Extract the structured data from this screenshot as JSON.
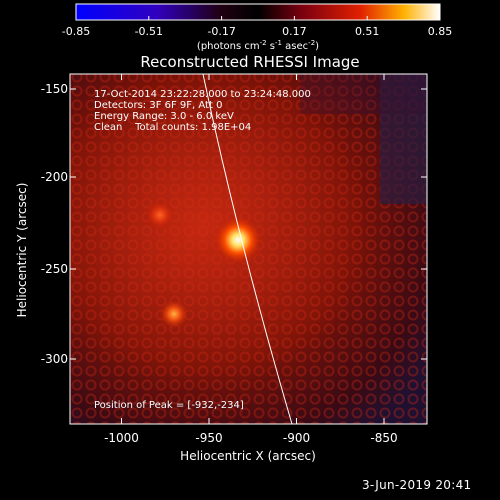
{
  "colorbar": {
    "ticks": [
      "-0.85",
      "-0.51",
      "-0.17",
      "0.17",
      "0.51",
      "0.85"
    ],
    "unit_main": "(photons cm",
    "unit_exp1": "-2",
    "unit_mid": " s",
    "unit_exp2": "-1",
    "unit_end": " asec",
    "unit_exp3": "-2",
    "unit_close": ")"
  },
  "title": "Reconstructed RHESSI Image",
  "info": {
    "line1": "17-Oct-2014 23:22:28.000 to 23:24:48.000",
    "line2": "Detectors: 3F 6F 9F, Att 0",
    "line3": "Energy Range: 3.0 - 6.0 keV",
    "line4": "Clean    Total counts: 1.98E+04"
  },
  "peak_label": "Position of Peak = [-932,-234]",
  "axes": {
    "xlabel": "Heliocentric X (arcsec)",
    "ylabel": "Heliocentric Y (arcsec)",
    "xticks": [
      "-1000",
      "-950",
      "-900",
      "-850"
    ],
    "yticks": [
      "-150",
      "-200",
      "-250",
      "-300"
    ]
  },
  "footer": "3-Jun-2019 20:41"
}
